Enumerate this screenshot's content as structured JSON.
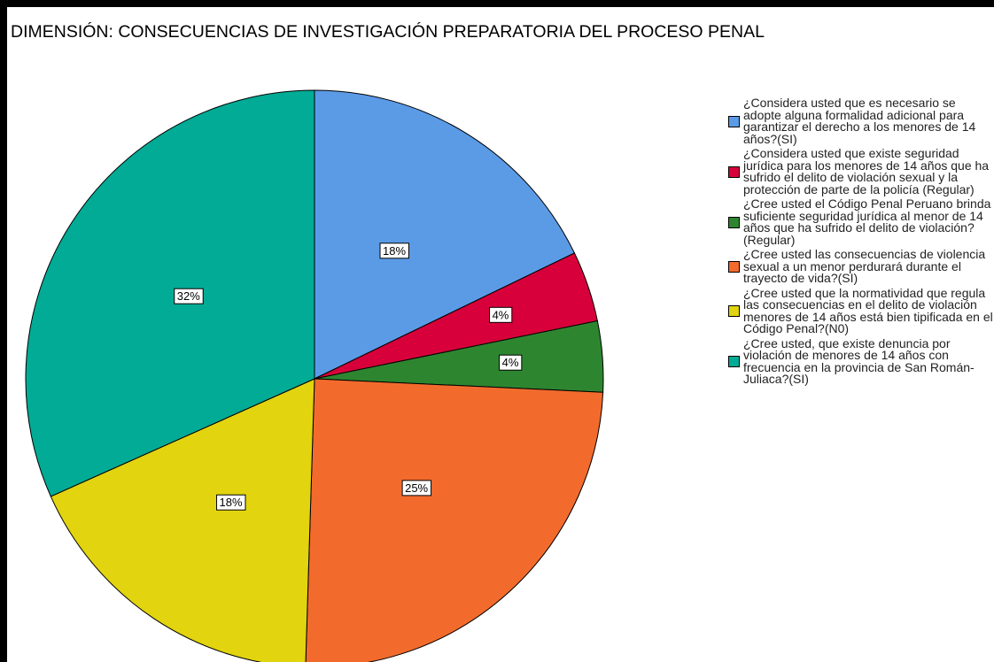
{
  "chart_data": {
    "type": "pie",
    "title": "DIMENSIÓN: CONSECUENCIAS DE INVESTIGACIÓN PREPARATORIA DEL PROCESO PENAL",
    "categories": [
      "¿Considera usted que es necesario se adopte alguna formalidad adicional para garantizar el derecho a los menores de 14 años?(SI)",
      "¿Considera usted que existe seguridad jurídica para los menores de 14 años que ha sufrido el delito de violación sexual y la protección de parte de la policía (Regular)",
      "¿Cree usted el Código Penal Peruano brinda suficiente seguridad jurídica al menor de 14 años que ha sufrido el delito de violación? (Regular)",
      "¿Cree usted las consecuencias de violencia sexual a un menor perdurará durante el trayecto de vida?(SI)",
      "¿Cree usted que la normatividad que regula las consecuencias en el delito de violación menores de 14 años está bien tipificada en el Código Penal?(N0)",
      "¿Cree usted, que existe denuncia por violación de menores de 14 años con frecuencia en la provincia de San Román-Juliaca?(SI)"
    ],
    "values": [
      18,
      4,
      4,
      25,
      18,
      32
    ],
    "value_labels": [
      "18%",
      "4%",
      "4%",
      "25%",
      "18%",
      "32%"
    ],
    "colors": [
      "#5b9be6",
      "#d8003a",
      "#2e8530",
      "#f26b2d",
      "#e2d40e",
      "#02ab95"
    ]
  }
}
